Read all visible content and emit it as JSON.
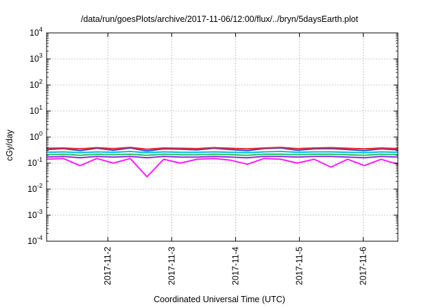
{
  "chart_data": {
    "type": "line",
    "title": "/data/run/goesPlots/archive/2017-11-06/12:00/flux/../bryn/5daysEarth.plot",
    "xlabel": "Coordinated Universal Time (UTC)",
    "ylabel": "cGy/day",
    "yscale": "log",
    "ylim": [
      0.0001,
      10000
    ],
    "y_tick_labels": [
      {
        "value": 0.0001,
        "base": "10",
        "exp": "-4"
      },
      {
        "value": 0.001,
        "base": "10",
        "exp": "-3"
      },
      {
        "value": 0.01,
        "base": "10",
        "exp": "-2"
      },
      {
        "value": 0.1,
        "base": "10",
        "exp": "-1"
      },
      {
        "value": 1,
        "base": "10",
        "exp": "0"
      },
      {
        "value": 10,
        "base": "10",
        "exp": "1"
      },
      {
        "value": 100,
        "base": "10",
        "exp": "2"
      },
      {
        "value": 1000,
        "base": "10",
        "exp": "3"
      },
      {
        "value": 10000,
        "base": "10",
        "exp": "4"
      }
    ],
    "xlim": [
      "2017-11-01 01:00",
      "2017-11-06 13:00"
    ],
    "x_tick_labels": [
      "2017-11-2",
      "2017-11-3",
      "2017-11-4",
      "2017-11-5",
      "2017-11-6"
    ],
    "x_tick_dates": [
      "2017-11-02",
      "2017-11-03",
      "2017-11-04",
      "2017-11-05",
      "2017-11-06"
    ],
    "grid": true,
    "legend": "none",
    "series": [
      {
        "color": "#e8232a",
        "values": [
          0.37,
          0.38,
          0.35,
          0.39,
          0.36,
          0.4,
          0.34,
          0.38,
          0.37,
          0.36,
          0.39,
          0.37,
          0.35,
          0.38,
          0.4,
          0.36,
          0.38,
          0.39,
          0.37,
          0.35,
          0.38,
          0.36
        ]
      },
      {
        "color": "#2a4fd8",
        "values": [
          0.33,
          0.36,
          0.3,
          0.37,
          0.31,
          0.38,
          0.29,
          0.35,
          0.34,
          0.32,
          0.37,
          0.33,
          0.3,
          0.36,
          0.38,
          0.31,
          0.35,
          0.36,
          0.33,
          0.3,
          0.35,
          0.32
        ]
      },
      {
        "color": "#00bcd4",
        "values": [
          0.26,
          0.27,
          0.25,
          0.27,
          0.26,
          0.28,
          0.25,
          0.27,
          0.26,
          0.26,
          0.27,
          0.26,
          0.25,
          0.27,
          0.28,
          0.26,
          0.27,
          0.27,
          0.26,
          0.25,
          0.27,
          0.26
        ]
      },
      {
        "color": "#1fbf5a",
        "values": [
          0.21,
          0.22,
          0.2,
          0.22,
          0.21,
          0.22,
          0.2,
          0.22,
          0.21,
          0.21,
          0.22,
          0.21,
          0.2,
          0.22,
          0.22,
          0.21,
          0.22,
          0.22,
          0.21,
          0.2,
          0.22,
          0.21
        ]
      },
      {
        "color": "#8a2be2",
        "values": [
          0.17,
          0.18,
          0.16,
          0.18,
          0.17,
          0.18,
          0.16,
          0.18,
          0.17,
          0.17,
          0.18,
          0.17,
          0.16,
          0.18,
          0.18,
          0.17,
          0.18,
          0.18,
          0.17,
          0.16,
          0.18,
          0.17
        ]
      },
      {
        "color": "#ff1aff",
        "values": [
          0.14,
          0.15,
          0.08,
          0.15,
          0.1,
          0.15,
          0.03,
          0.14,
          0.1,
          0.14,
          0.15,
          0.13,
          0.09,
          0.15,
          0.14,
          0.1,
          0.14,
          0.07,
          0.14,
          0.08,
          0.14,
          0.09
        ]
      }
    ]
  }
}
